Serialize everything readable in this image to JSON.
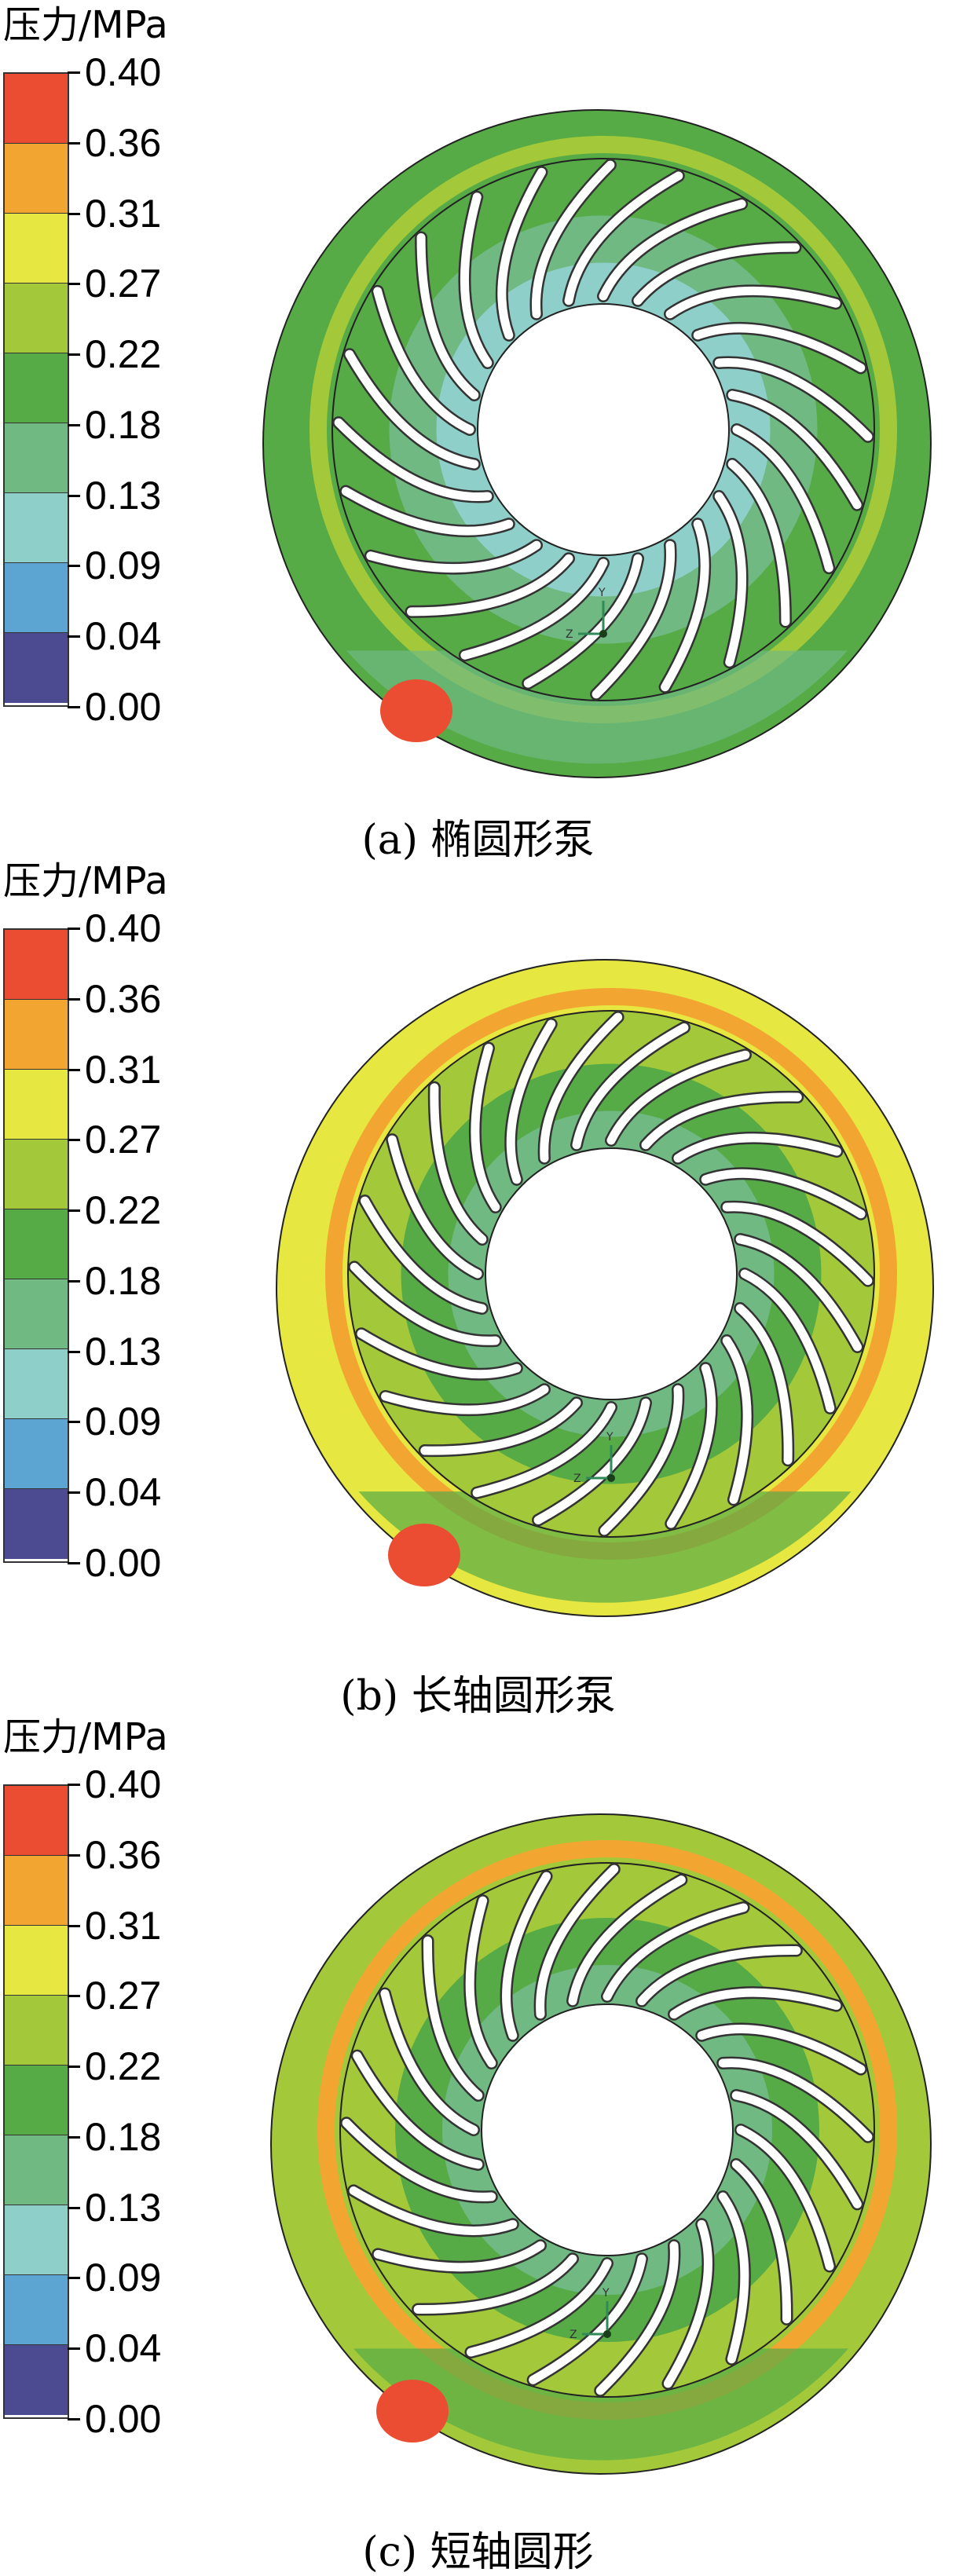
{
  "colors": {
    "levels": [
      "#ea4d32",
      "#f3a531",
      "#e6e740",
      "#a3c93a",
      "#56ab46",
      "#71b983",
      "#8fcfc9",
      "#5ca4d1",
      "#4c4a91"
    ],
    "outline": "#000000",
    "blade": "#ffffff"
  },
  "legend": {
    "title": "压力/MPa",
    "ticks": [
      "0.40",
      "0.36",
      "0.31",
      "0.27",
      "0.22",
      "0.18",
      "0.13",
      "0.09",
      "0.04",
      "0.00"
    ]
  },
  "panels": [
    {
      "caption": "(a) 椭圆形泵",
      "housing_color_index": 4,
      "rim_color_index": 3,
      "ring_colors": [
        4,
        5,
        6
      ],
      "hotspot_color_index": 0
    },
    {
      "caption": "(b) 长轴圆形泵",
      "housing_color_index": 2,
      "rim_color_index": 1,
      "ring_colors": [
        3,
        4,
        5
      ],
      "hotspot_color_index": 0
    },
    {
      "caption": "(c) 短轴圆形",
      "housing_color_index": 3,
      "rim_color_index": 1,
      "ring_colors": [
        3,
        4,
        5
      ],
      "hotspot_color_index": 0
    }
  ],
  "axis_labels": {
    "y": "Y",
    "z": "Z"
  }
}
